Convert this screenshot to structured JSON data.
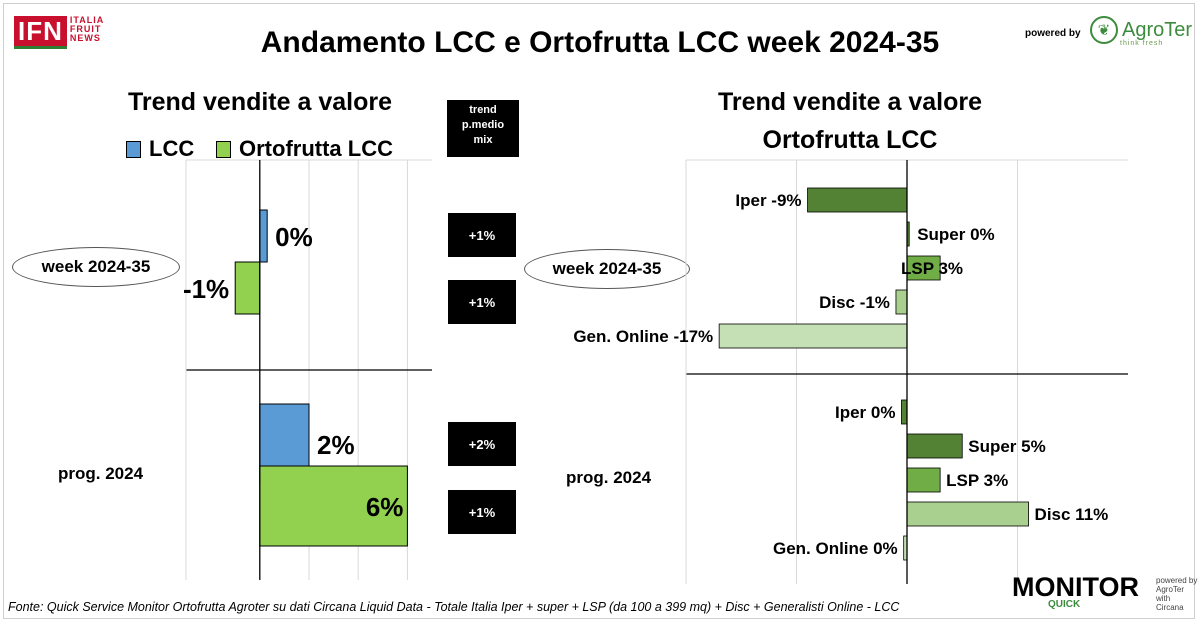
{
  "header": {
    "title": "Andamento LCC e Ortofrutta LCC week 2024-35",
    "logo_ifn": "IFN",
    "logo_ifn_words": [
      "ITALIA",
      "FRUIT",
      "NEWS"
    ],
    "powered_by": "powered by",
    "agroter": "AgroTer",
    "agroter_tagline": "think fresh"
  },
  "left_panel": {
    "subtitle": "Trend vendite a valore",
    "legend": [
      {
        "name": "LCC",
        "color": "#5b9bd5"
      },
      {
        "name": "Ortofrutta LCC",
        "color": "#92d050"
      }
    ],
    "trend_header": [
      "trend",
      "p.medio",
      "mix"
    ],
    "groups": [
      "week 2024-35",
      "prog. 2024"
    ],
    "trend_values": [
      "+1%",
      "+1%",
      "+2%",
      "+1%"
    ]
  },
  "right_panel": {
    "subtitle_line1": "Trend vendite a valore",
    "subtitle_line2": "Ortofrutta LCC",
    "groups": [
      "week 2024-35",
      "prog. 2024"
    ]
  },
  "chart_data": [
    {
      "type": "bar",
      "orientation": "horizontal",
      "categories": [
        "week 2024-35",
        "prog. 2024"
      ],
      "series": [
        {
          "name": "LCC",
          "values": [
            0.3,
            2
          ],
          "labels": [
            "0%",
            "2%"
          ],
          "color": "#5b9bd5"
        },
        {
          "name": "Ortofrutta LCC",
          "values": [
            -1,
            6
          ],
          "labels": [
            "-1%",
            "6%"
          ],
          "color": "#92d050"
        }
      ],
      "title": "Trend vendite a valore",
      "xlim": [
        -3,
        7
      ],
      "grid": true
    },
    {
      "type": "bar",
      "orientation": "horizontal",
      "categories": [
        "week 2024-35",
        "prog. 2024"
      ],
      "series_names": [
        "Iper",
        "Super",
        "LSP",
        "Disc",
        "Gen. Online"
      ],
      "colors": [
        "#548235",
        "#548235",
        "#70ad47",
        "#a9d08e",
        "#c5e0b4"
      ],
      "groups": [
        {
          "name": "week 2024-35",
          "values": [
            -9,
            0.2,
            3,
            -1,
            -17
          ],
          "labels": [
            "Iper -9%",
            "Super 0%",
            "LSP 3%",
            "Disc -1%",
            "Gen. Online -17%"
          ]
        },
        {
          "name": "prog. 2024",
          "values": [
            -0.5,
            5,
            3,
            11,
            -0.3
          ],
          "labels": [
            "Iper 0%",
            "Super 5%",
            "LSP 3%",
            "Disc 11%",
            "Gen. Online 0%"
          ]
        }
      ],
      "title": "Trend vendite a valore Ortofrutta LCC",
      "xlim": [
        -20,
        20
      ],
      "grid": true
    }
  ],
  "footer": {
    "source": "Fonte: Quick Service Monitor Ortofrutta Agroter su dati Circana Liquid Data - Totale Italia Iper + super + LSP (da 100 a 399 mq) + Disc + Generalisti Online - LCC",
    "monitor": "MONITOR",
    "quick": "QUICK",
    "monitor_side": [
      "powered by",
      "AgroTer",
      "with",
      "Circana"
    ]
  }
}
